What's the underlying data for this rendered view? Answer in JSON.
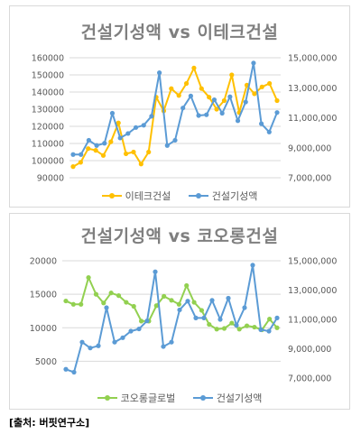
{
  "source": "[출처: 버핏연구소]",
  "colors": {
    "yellow": "#ffc000",
    "blue": "#5b9bd5",
    "green": "#92d050",
    "grid": "#d9d9d9"
  },
  "chart_data": [
    {
      "type": "line",
      "title": "건설기성액 vs 이테크건설",
      "legend_position": "bottom",
      "grid": true,
      "left_axis": {
        "min": 90000,
        "max": 160000,
        "ticks": [
          160000,
          150000,
          140000,
          130000,
          120000,
          110000,
          100000,
          90000
        ]
      },
      "right_axis": {
        "min": 7000000,
        "max": 15000000,
        "ticks": [
          "15,000,000",
          "13,000,000",
          "11,000,000",
          "9,000,000",
          "7,000,000"
        ]
      },
      "series": [
        {
          "name": "이테크건설",
          "axis": "left",
          "color": "yellow",
          "values": [
            96500,
            99000,
            107000,
            106000,
            103000,
            111000,
            122000,
            104000,
            105000,
            98000,
            105000,
            137000,
            129000,
            142000,
            138000,
            145000,
            154000,
            142000,
            137000,
            130000,
            135000,
            150000,
            128000,
            144000,
            139000,
            143000,
            145000,
            135000
          ]
        },
        {
          "name": "건설기성액",
          "axis": "right",
          "color": "blue",
          "values": [
            8550000,
            8550000,
            9500000,
            9150000,
            9300000,
            11300000,
            9650000,
            9950000,
            10350000,
            10500000,
            11100000,
            14000000,
            9150000,
            9500000,
            11650000,
            12450000,
            11150000,
            11200000,
            12200000,
            11300000,
            12400000,
            10800000,
            12050000,
            14650000,
            10600000,
            10050000,
            11350000
          ]
        }
      ]
    },
    {
      "type": "line",
      "title": "건설기성액 vs 코오롱건설",
      "legend_position": "bottom",
      "grid": true,
      "left_axis": {
        "min": 2500,
        "max": 20000,
        "ticks": [
          20000,
          15000,
          10000,
          5000
        ]
      },
      "right_axis": {
        "min": 7000000,
        "max": 15000000,
        "ticks": [
          "15,000,000",
          "13,000,000",
          "11,000,000",
          "9,000,000",
          "7,000,000"
        ]
      },
      "series": [
        {
          "name": "코오롱글로벌",
          "axis": "left",
          "color": "green",
          "values": [
            14000,
            13500,
            13500,
            17500,
            15000,
            13700,
            15200,
            14800,
            13800,
            13200,
            11000,
            11000,
            13300,
            14700,
            14100,
            13500,
            16300,
            13800,
            12600,
            10500,
            9800,
            9900,
            10700,
            9800,
            10300,
            10100,
            9700,
            11300,
            10000
          ]
        },
        {
          "name": "건설기성액",
          "axis": "right",
          "color": "blue",
          "values": [
            7600000,
            7400000,
            9450000,
            9050000,
            9200000,
            11800000,
            9450000,
            9750000,
            10200000,
            10350000,
            10900000,
            14250000,
            9150000,
            9450000,
            11650000,
            12250000,
            11100000,
            11100000,
            12300000,
            11000000,
            12450000,
            10600000,
            11800000,
            14700000,
            10300000,
            10200000,
            11100000
          ]
        }
      ]
    }
  ]
}
